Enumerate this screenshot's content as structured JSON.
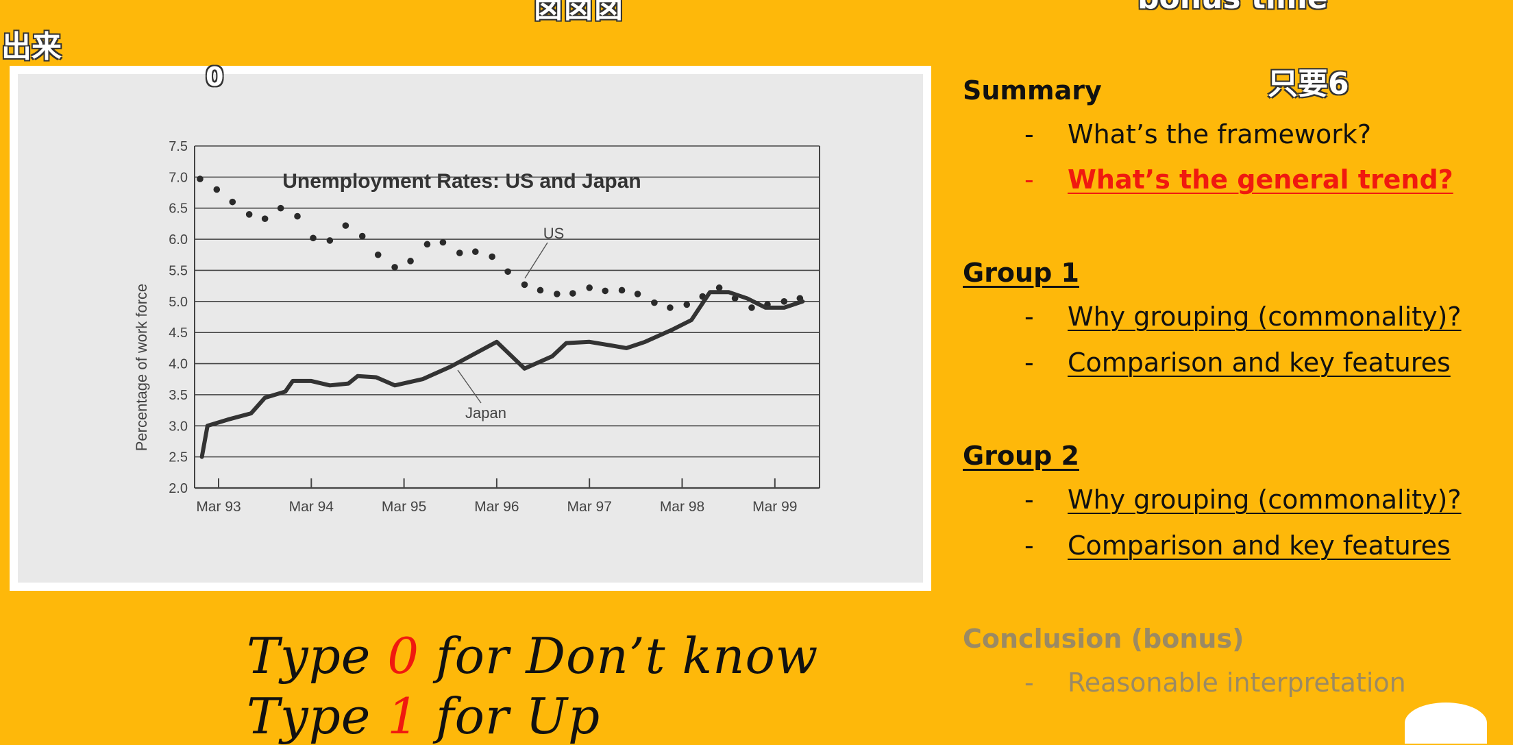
{
  "danmaku": {
    "top_center": "卤卤卤",
    "top_right": "bonus time",
    "left": "出来",
    "zero": "0",
    "right": "只要6"
  },
  "chart_data": {
    "type": "scatter",
    "title": "Unemployment Rates: US and Japan",
    "ylabel": "Percentage of work force",
    "xlabel": "",
    "ylim": [
      2.0,
      7.5
    ],
    "yticks": [
      "2.0",
      "2.5",
      "3.0",
      "3.5",
      "4.0",
      "4.5",
      "5.0",
      "5.5",
      "6.0",
      "6.5",
      "7.0",
      "7.5"
    ],
    "xticks": [
      "Mar 93",
      "Mar 94",
      "Mar 95",
      "Mar 96",
      "Mar 97",
      "Mar 98",
      "Mar 99"
    ],
    "grid": true,
    "series": [
      {
        "name": "US",
        "style": "dots",
        "x": [
          -0.2,
          -0.02,
          0.15,
          0.33,
          0.5,
          0.67,
          0.85,
          1.02,
          1.2,
          1.37,
          1.55,
          1.72,
          1.9,
          2.07,
          2.25,
          2.42,
          2.6,
          2.77,
          2.95,
          3.12,
          3.3,
          3.47,
          3.65,
          3.82,
          4.0,
          4.17,
          4.35,
          4.52,
          4.7,
          4.87,
          5.05,
          5.22,
          5.4,
          5.57,
          5.75,
          5.92,
          6.1,
          6.27
        ],
        "y": [
          6.97,
          6.8,
          6.6,
          6.4,
          6.33,
          6.5,
          6.37,
          6.02,
          5.98,
          6.22,
          6.05,
          5.75,
          5.55,
          5.65,
          5.92,
          5.95,
          5.78,
          5.8,
          5.72,
          5.48,
          5.27,
          5.18,
          5.12,
          5.13,
          5.22,
          5.17,
          5.18,
          5.12,
          4.98,
          4.9,
          4.95,
          5.08,
          5.22,
          5.05,
          4.9,
          4.95,
          5.0,
          5.05
        ]
      },
      {
        "name": "Japan",
        "style": "line",
        "x": [
          -0.18,
          -0.12,
          0.1,
          0.35,
          0.5,
          0.72,
          0.8,
          1.0,
          1.2,
          1.4,
          1.5,
          1.7,
          1.9,
          2.2,
          2.5,
          3.0,
          3.3,
          3.6,
          3.75,
          4.0,
          4.2,
          4.4,
          4.6,
          4.9,
          5.1,
          5.3,
          5.5,
          5.7,
          5.9,
          6.1,
          6.3
        ],
        "y": [
          2.5,
          3.0,
          3.1,
          3.2,
          3.45,
          3.55,
          3.72,
          3.72,
          3.65,
          3.68,
          3.8,
          3.78,
          3.65,
          3.75,
          3.95,
          4.35,
          3.92,
          4.12,
          4.33,
          4.35,
          4.3,
          4.25,
          4.35,
          4.55,
          4.7,
          5.15,
          5.15,
          5.05,
          4.9,
          4.9,
          5.0
        ]
      }
    ],
    "annotations": [
      "US",
      "Japan"
    ]
  },
  "outline": {
    "summary": {
      "title": "Summary",
      "items": [
        "What’s the framework?",
        "What’s the general trend?"
      ]
    },
    "group1": {
      "title": "Group 1",
      "items": [
        "Why grouping (commonality)?",
        "Comparison and key features"
      ]
    },
    "group2": {
      "title": "Group 2",
      "items": [
        "Why grouping (commonality)?",
        "Comparison and key features"
      ]
    },
    "conclusion": {
      "title": "Conclusion (bonus)",
      "items": [
        "Reasonable interpretation"
      ]
    },
    "dash": "-"
  },
  "instructions": {
    "line1_pre": "Type ",
    "line1_num": "0",
    "line1_post": " for Don’t know",
    "line2_pre": "Type ",
    "line2_num": "1",
    "line2_post": " for Up"
  },
  "colors": {
    "background": "#FEB80A",
    "highlight": "#F0190F"
  }
}
